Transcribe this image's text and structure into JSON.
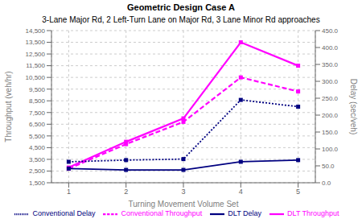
{
  "chart_data": {
    "type": "line",
    "title": "Geometric Design Case A",
    "subtitle": "3-Lane Major Rd, 2 Left-Turn Lane on Major Rd, 3 Lane Minor Rd approaches",
    "xlabel": "Turning Movement Volume Set",
    "ylabel": "Throughput (veh/hr)",
    "y2label": "Delay (sec/veh)",
    "x": [
      1,
      2,
      3,
      4,
      5
    ],
    "xlim": [
      0.7,
      5.3
    ],
    "xticks": [
      1,
      2,
      3,
      4,
      5
    ],
    "ylim": [
      1500,
      14500
    ],
    "yticks": [
      {
        "value": 1500,
        "label": "1,500"
      },
      {
        "value": 2500,
        "label": "2,500"
      },
      {
        "value": 3500,
        "label": "3,500"
      },
      {
        "value": 4500,
        "label": "4,500"
      },
      {
        "value": 5500,
        "label": "5,500"
      },
      {
        "value": 6500,
        "label": "6,500"
      },
      {
        "value": 7500,
        "label": "7,500"
      },
      {
        "value": 8500,
        "label": "8,500"
      },
      {
        "value": 9500,
        "label": "9,500"
      },
      {
        "value": 10500,
        "label": "10,500"
      },
      {
        "value": 11500,
        "label": "11,500"
      },
      {
        "value": 12500,
        "label": "12,500"
      },
      {
        "value": 13500,
        "label": "13,500"
      },
      {
        "value": 14500,
        "label": "14,500"
      }
    ],
    "y2lim": [
      0.0,
      450.0
    ],
    "y2ticks": [
      {
        "value": 0,
        "label": "0.0"
      },
      {
        "value": 50,
        "label": "50.0"
      },
      {
        "value": 100,
        "label": "100.0"
      },
      {
        "value": 150,
        "label": "150.0"
      },
      {
        "value": 200,
        "label": "200.0"
      },
      {
        "value": 250,
        "label": "250.0"
      },
      {
        "value": 300,
        "label": "300.0"
      },
      {
        "value": 350,
        "label": "350.0"
      },
      {
        "value": 400,
        "label": "400.0"
      },
      {
        "value": 450,
        "label": "450.0"
      }
    ],
    "grid": true,
    "legend": "bottom",
    "series": [
      {
        "name": "DLT Throughput",
        "color": "#FF00FF",
        "marker": "square",
        "line_style": "solid",
        "values": [
          2800,
          5000,
          7000,
          13500,
          11500
        ]
      },
      {
        "name": "Conventional Throughput",
        "color": "#FF00FF",
        "marker": "square",
        "line_style": "dashed",
        "values": [
          2700,
          4800,
          6700,
          10500,
          9300
        ]
      },
      {
        "name": "DLT Delay",
        "color": "#000080",
        "marker": "square",
        "line_style": "solid",
        "axis": "y2",
        "values": [
          42,
          38,
          38,
          62,
          67
        ]
      },
      {
        "name": "Conventional Delay",
        "color": "#000080",
        "marker": "square",
        "line_style": "dotted",
        "axis": "y2",
        "values": [
          62,
          67,
          70,
          245,
          225
        ]
      }
    ]
  }
}
